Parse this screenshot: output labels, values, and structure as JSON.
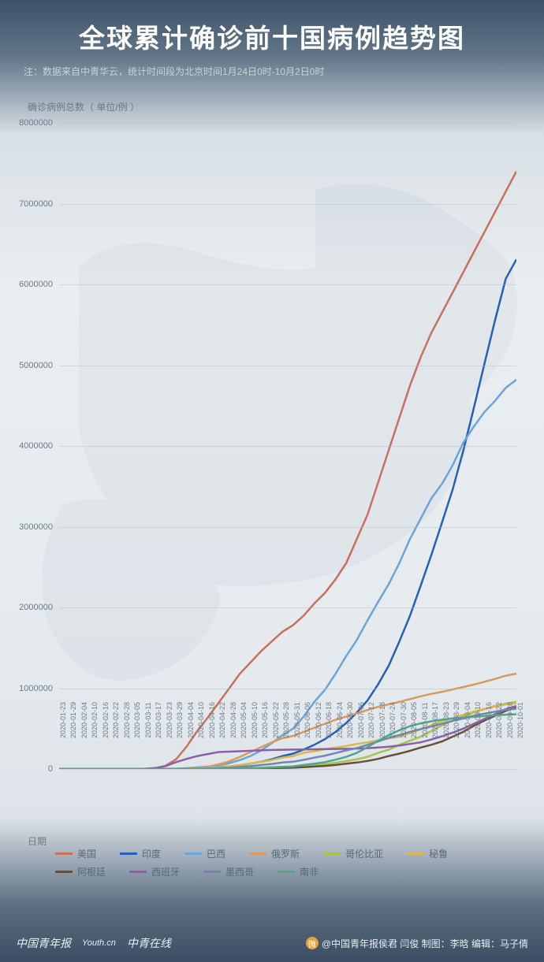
{
  "header": {
    "title": "全球累计确诊前十国病例趋势图",
    "subtitle": "注：数据来自中青华云，统计时间段为北京时间1月24日0时-10月2日0时"
  },
  "chart": {
    "type": "line",
    "y_label": "确诊病例总数（ 单位/例 ）",
    "x_label": "日期",
    "ylim": [
      0,
      8000000
    ],
    "ytick_step": 1000000,
    "y_ticks": [
      "0",
      "1000000",
      "2000000",
      "3000000",
      "4000000",
      "5000000",
      "6000000",
      "7000000",
      "8000000"
    ],
    "x_ticks": [
      "2020-01-23",
      "2020-01-29",
      "2020-02-04",
      "2020-02-10",
      "2020-02-16",
      "2020-02-22",
      "2020-02-28",
      "2020-03-05",
      "2020-03-11",
      "2020-03-17",
      "2020-03-23",
      "2020-03-29",
      "2020-04-04",
      "2020-04-10",
      "2020-04-16",
      "2020-04-22",
      "2020-04-28",
      "2020-05-04",
      "2020-05-10",
      "2020-05-16",
      "2020-05-22",
      "2020-05-28",
      "2020-05-31",
      "2020-06-06",
      "2020-06-12",
      "2020-06-18",
      "2020-06-24",
      "2020-06-30",
      "2020-07-06",
      "2020-07-12",
      "2020-07-18",
      "2020-07-24",
      "2020-07-30",
      "2020-08-05",
      "2020-08-11",
      "2020-08-17",
      "2020-08-23",
      "2020-08-29",
      "2020-09-04",
      "2020-09-10",
      "2020-09-16",
      "2020-09-22",
      "2020-09-28",
      "2020-10-01"
    ],
    "background_color": "#e8edf1",
    "grid_color": "#b8c0c8",
    "line_width": 2.5,
    "label_fontsize": 12,
    "tick_fontsize": 10,
    "series": [
      {
        "key": "usa",
        "label": "美国",
        "color": "#c96f5e",
        "values": [
          0,
          0,
          0,
          0,
          0,
          0,
          0,
          0,
          1000,
          5000,
          40000,
          120000,
          280000,
          470000,
          640000,
          820000,
          1000000,
          1180000,
          1320000,
          1460000,
          1580000,
          1700000,
          1780000,
          1900000,
          2050000,
          2180000,
          2350000,
          2550000,
          2850000,
          3150000,
          3550000,
          3950000,
          4350000,
          4750000,
          5100000,
          5400000,
          5650000,
          5900000,
          6150000,
          6400000,
          6650000,
          6900000,
          7150000,
          7400000
        ]
      },
      {
        "key": "india",
        "label": "印度",
        "color": "#2461b5",
        "values": [
          0,
          0,
          0,
          0,
          0,
          0,
          0,
          0,
          0,
          0,
          500,
          1000,
          3000,
          7000,
          13000,
          21000,
          31000,
          46000,
          67000,
          90000,
          120000,
          160000,
          190000,
          240000,
          300000,
          370000,
          460000,
          570000,
          700000,
          850000,
          1050000,
          1280000,
          1580000,
          1900000,
          2270000,
          2650000,
          3050000,
          3460000,
          3940000,
          4470000,
          5020000,
          5560000,
          6070000,
          6310000
        ]
      },
      {
        "key": "brazil",
        "label": "巴西",
        "color": "#6aa5d8",
        "values": [
          0,
          0,
          0,
          0,
          0,
          0,
          0,
          0,
          0,
          0,
          1500,
          4000,
          10000,
          20000,
          30000,
          45000,
          72000,
          110000,
          160000,
          230000,
          320000,
          420000,
          500000,
          650000,
          830000,
          980000,
          1180000,
          1400000,
          1600000,
          1840000,
          2070000,
          2290000,
          2550000,
          2850000,
          3100000,
          3350000,
          3530000,
          3760000,
          4040000,
          4240000,
          4420000,
          4560000,
          4720000,
          4820000
        ]
      },
      {
        "key": "russia",
        "label": "俄罗斯",
        "color": "#d89a5e",
        "values": [
          0,
          0,
          0,
          0,
          0,
          0,
          0,
          0,
          0,
          0,
          500,
          1500,
          4000,
          12000,
          28000,
          58000,
          95000,
          150000,
          210000,
          270000,
          330000,
          380000,
          410000,
          460000,
          510000,
          560000,
          610000,
          650000,
          690000,
          730000,
          770000,
          800000,
          830000,
          865000,
          900000,
          930000,
          955000,
          985000,
          1015000,
          1045000,
          1080000,
          1115000,
          1155000,
          1180000
        ]
      },
      {
        "key": "colombia",
        "label": "哥伦比亚",
        "color": "#a5c44f",
        "values": [
          0,
          0,
          0,
          0,
          0,
          0,
          0,
          0,
          0,
          0,
          200,
          700,
          1400,
          2500,
          3400,
          4400,
          5900,
          7900,
          11000,
          15000,
          21000,
          25000,
          28000,
          38000,
          46000,
          60000,
          77000,
          98000,
          120000,
          150000,
          200000,
          240000,
          300000,
          350000,
          400000,
          470000,
          540000,
          600000,
          650000,
          700000,
          740000,
          780000,
          810000,
          830000
        ]
      },
      {
        "key": "peru",
        "label": "秘鲁",
        "color": "#d8b84f",
        "values": [
          0,
          0,
          0,
          0,
          0,
          0,
          0,
          0,
          0,
          0,
          300,
          900,
          2000,
          6000,
          12000,
          20000,
          32000,
          48000,
          68000,
          88000,
          110000,
          140000,
          160000,
          200000,
          220000,
          245000,
          265000,
          285000,
          310000,
          330000,
          355000,
          380000,
          400000,
          445000,
          490000,
          540000,
          590000,
          630000,
          670000,
          710000,
          745000,
          775000,
          800000,
          815000
        ]
      },
      {
        "key": "argentina",
        "label": "阿根廷",
        "color": "#6b4e3a",
        "values": [
          0,
          0,
          0,
          0,
          0,
          0,
          0,
          0,
          0,
          0,
          200,
          800,
          1400,
          2000,
          2700,
          3400,
          4100,
          5000,
          6000,
          7800,
          10000,
          14000,
          16000,
          22000,
          30000,
          38000,
          50000,
          65000,
          80000,
          100000,
          125000,
          160000,
          190000,
          225000,
          265000,
          300000,
          340000,
          400000,
          460000,
          535000,
          600000,
          660000,
          720000,
          760000
        ]
      },
      {
        "key": "spain",
        "label": "西班牙",
        "color": "#8e5fa8",
        "values": [
          0,
          0,
          0,
          0,
          0,
          0,
          0,
          0,
          2000,
          12000,
          35000,
          85000,
          125000,
          160000,
          185000,
          210000,
          215000,
          220000,
          225000,
          230000,
          235000,
          238000,
          240000,
          242000,
          244000,
          246000,
          248000,
          250000,
          253000,
          258000,
          265000,
          275000,
          290000,
          310000,
          330000,
          365000,
          405000,
          450000,
          500000,
          560000,
          620000,
          680000,
          740000,
          780000
        ]
      },
      {
        "key": "mexico",
        "label": "墨西哥",
        "color": "#7088b0",
        "values": [
          0,
          0,
          0,
          0,
          0,
          0,
          0,
          0,
          0,
          0,
          300,
          1000,
          2000,
          4000,
          6500,
          10000,
          16000,
          25000,
          35000,
          49000,
          62000,
          81000,
          90000,
          113000,
          140000,
          165000,
          197000,
          230000,
          260000,
          300000,
          340000,
          385000,
          420000,
          460000,
          495000,
          525000,
          560000,
          595000,
          625000,
          660000,
          685000,
          710000,
          735000,
          745000
        ]
      },
      {
        "key": "safrica",
        "label": "南非",
        "color": "#4da88a",
        "values": [
          0,
          0,
          0,
          0,
          0,
          0,
          0,
          0,
          0,
          0,
          400,
          1200,
          1600,
          2000,
          2700,
          3600,
          5000,
          7500,
          10000,
          14000,
          20000,
          27000,
          32000,
          50000,
          65000,
          85000,
          115000,
          150000,
          200000,
          270000,
          350000,
          420000,
          480000,
          530000,
          565000,
          590000,
          610000,
          625000,
          635000,
          645000,
          655000,
          665000,
          672000,
          678000
        ]
      }
    ]
  },
  "footer": {
    "logo1": "中国青年报",
    "logo2": "Youth.cn",
    "logo3": "中青在线",
    "credit_handle": "@中国青年报侯君 闫俊 制图：李晗 编辑：马子倩"
  }
}
